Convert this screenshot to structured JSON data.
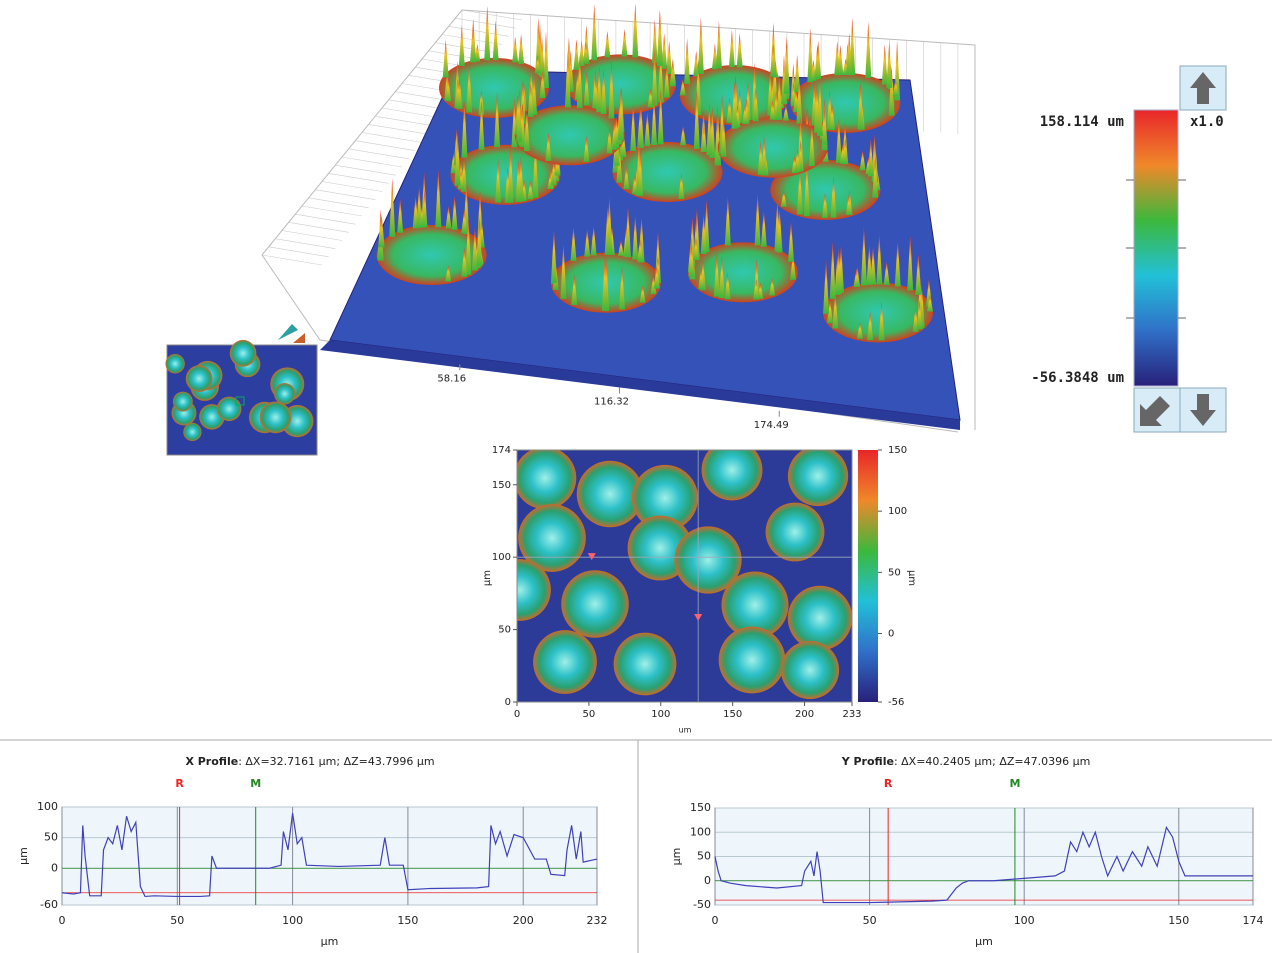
{
  "chart_data": [
    {
      "type": "surface",
      "xticks": [
        58.16,
        116.32,
        174.49
      ],
      "zticks": [
        {
          "value": 158.114,
          "label": "158.114 um"
        },
        {
          "value": -56.3848,
          "label": "-56.3848 um"
        }
      ],
      "zoom": "x1.0",
      "colormap": [
        "#e8262a",
        "#f0882a",
        "#3cb83c",
        "#22c0d8",
        "#3070c8",
        "#28207a"
      ]
    },
    {
      "type": "heatmap",
      "xlim": [
        0,
        233
      ],
      "xticks": [
        0,
        50,
        100,
        150,
        200,
        233
      ],
      "ylim": [
        0,
        174
      ],
      "yticks": [
        0,
        50,
        100,
        150,
        174
      ],
      "xlabel": "um",
      "ylabel": "µm",
      "clim": [
        -56,
        150
      ],
      "cticks": [
        150,
        100,
        50,
        0,
        -56
      ],
      "clabel": "µm",
      "cursors": [
        {
          "x": 52,
          "y": 100
        },
        {
          "x": 126,
          "y": 58
        }
      ],
      "crosshair": {
        "x": 126,
        "y": 100
      }
    },
    {
      "type": "line",
      "title": "X Profile",
      "title_detail": ": ΔX=32.7161 µm; ΔZ=43.7996 µm",
      "xlabel": "µm",
      "ylabel": "µm",
      "xlim": [
        0,
        232
      ],
      "xticks": [
        0,
        50,
        100,
        150,
        200,
        232
      ],
      "ylim": [
        -60,
        100
      ],
      "yticks": [
        100,
        50,
        0,
        -60
      ],
      "markers": [
        {
          "label": "R",
          "x": 51,
          "y": -40,
          "color": "#ee2222"
        },
        {
          "label": "M",
          "x": 84,
          "y": 0,
          "color": "#228822"
        }
      ],
      "series": [
        {
          "color": "#4040b8",
          "x": [
            0,
            5,
            8,
            9,
            10,
            12,
            17,
            18,
            20,
            22,
            24,
            26,
            28,
            30,
            32,
            34,
            36,
            40,
            50,
            60,
            64,
            65,
            67,
            70,
            80,
            90,
            95,
            96,
            98,
            100,
            102,
            104,
            106,
            120,
            138,
            140,
            142,
            148,
            150,
            160,
            180,
            185,
            186,
            188,
            190,
            193,
            196,
            200,
            205,
            210,
            212,
            218,
            219,
            221,
            223,
            225,
            226,
            232
          ],
          "values": [
            -40,
            -42,
            -40,
            70,
            20,
            -45,
            -45,
            30,
            50,
            40,
            70,
            30,
            85,
            60,
            75,
            -30,
            -46,
            -45,
            -46,
            -46,
            -45,
            20,
            0,
            0,
            0,
            0,
            5,
            60,
            30,
            90,
            40,
            50,
            5,
            3,
            5,
            50,
            5,
            5,
            -35,
            -33,
            -32,
            -30,
            70,
            40,
            60,
            20,
            55,
            50,
            15,
            15,
            -10,
            -12,
            30,
            70,
            15,
            60,
            10,
            15
          ]
        }
      ]
    },
    {
      "type": "line",
      "title": "Y Profile",
      "title_detail": ": ΔX=40.2405 µm; ΔZ=47.0396 µm",
      "xlabel": "µm",
      "ylabel": "µm",
      "xlim": [
        0,
        174
      ],
      "xticks": [
        0,
        50,
        100,
        150,
        174
      ],
      "ylim": [
        -50,
        150
      ],
      "yticks": [
        150,
        100,
        50,
        0,
        -50
      ],
      "markers": [
        {
          "label": "R",
          "x": 56,
          "y": -40,
          "color": "#ee2222"
        },
        {
          "label": "M",
          "x": 97,
          "y": 0,
          "color": "#228822"
        }
      ],
      "series": [
        {
          "color": "#4040b8",
          "x": [
            0,
            1,
            2,
            5,
            10,
            20,
            28,
            29,
            31,
            32,
            33,
            34,
            35,
            50,
            70,
            75,
            78,
            80,
            82,
            90,
            110,
            113,
            115,
            117,
            119,
            121,
            123,
            125,
            127,
            130,
            132,
            135,
            138,
            140,
            143,
            146,
            148,
            150,
            152,
            155,
            174
          ],
          "values": [
            50,
            20,
            0,
            -5,
            -10,
            -15,
            -10,
            20,
            40,
            10,
            60,
            20,
            -45,
            -45,
            -42,
            -40,
            -15,
            -5,
            0,
            0,
            10,
            20,
            80,
            60,
            100,
            70,
            100,
            50,
            10,
            50,
            20,
            60,
            30,
            70,
            30,
            110,
            90,
            40,
            10,
            10,
            10
          ]
        }
      ]
    }
  ]
}
